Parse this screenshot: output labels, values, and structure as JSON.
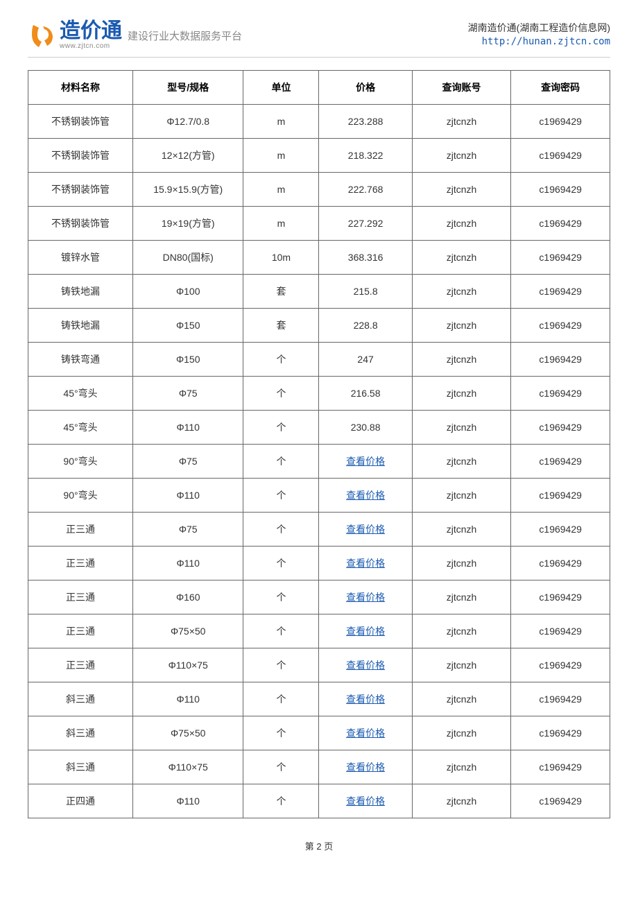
{
  "header": {
    "logo_title": "造价通",
    "logo_sub": "www.zjtcn.com",
    "tagline": "建设行业大数据服务平台",
    "site_name": "湖南造价通(湖南工程造价信息网)",
    "site_url": "http://hunan.zjtcn.com",
    "logo_colors": {
      "orange": "#f08c1a",
      "blue": "#1a5ab0"
    }
  },
  "table": {
    "columns": [
      "材料名称",
      "型号/规格",
      "单位",
      "价格",
      "查询账号",
      "查询密码"
    ],
    "column_widths": [
      "18%",
      "19%",
      "13%",
      "16%",
      "17%",
      "17%"
    ],
    "border_color": "#666666",
    "header_color": "#000000",
    "cell_color": "#333333",
    "link_color": "#1a5ab0",
    "font_size": 14,
    "rows": [
      {
        "name": "不锈钢装饰管",
        "spec": "Φ12.7/0.8",
        "unit": "m",
        "price": "223.288",
        "is_link": false,
        "account": "zjtcnzh",
        "password": "c1969429"
      },
      {
        "name": "不锈钢装饰管",
        "spec": "12×12(方管)",
        "unit": "m",
        "price": "218.322",
        "is_link": false,
        "account": "zjtcnzh",
        "password": "c1969429"
      },
      {
        "name": "不锈钢装饰管",
        "spec": "15.9×15.9(方管)",
        "unit": "m",
        "price": "222.768",
        "is_link": false,
        "account": "zjtcnzh",
        "password": "c1969429"
      },
      {
        "name": "不锈钢装饰管",
        "spec": "19×19(方管)",
        "unit": "m",
        "price": "227.292",
        "is_link": false,
        "account": "zjtcnzh",
        "password": "c1969429"
      },
      {
        "name": "镀锌水管",
        "spec": "DN80(国标)",
        "unit": "10m",
        "price": "368.316",
        "is_link": false,
        "account": "zjtcnzh",
        "password": "c1969429"
      },
      {
        "name": "铸铁地漏",
        "spec": "Φ100",
        "unit": "套",
        "price": "215.8",
        "is_link": false,
        "account": "zjtcnzh",
        "password": "c1969429"
      },
      {
        "name": "铸铁地漏",
        "spec": "Φ150",
        "unit": "套",
        "price": "228.8",
        "is_link": false,
        "account": "zjtcnzh",
        "password": "c1969429"
      },
      {
        "name": "铸铁弯通",
        "spec": "Φ150",
        "unit": "个",
        "price": "247",
        "is_link": false,
        "account": "zjtcnzh",
        "password": "c1969429"
      },
      {
        "name": "45°弯头",
        "spec": "Φ75",
        "unit": "个",
        "price": "216.58",
        "is_link": false,
        "account": "zjtcnzh",
        "password": "c1969429"
      },
      {
        "name": "45°弯头",
        "spec": "Φ110",
        "unit": "个",
        "price": "230.88",
        "is_link": false,
        "account": "zjtcnzh",
        "password": "c1969429"
      },
      {
        "name": "90°弯头",
        "spec": "Φ75",
        "unit": "个",
        "price": "查看价格",
        "is_link": true,
        "account": "zjtcnzh",
        "password": "c1969429"
      },
      {
        "name": "90°弯头",
        "spec": "Φ110",
        "unit": "个",
        "price": "查看价格",
        "is_link": true,
        "account": "zjtcnzh",
        "password": "c1969429"
      },
      {
        "name": "正三通",
        "spec": "Φ75",
        "unit": "个",
        "price": "查看价格",
        "is_link": true,
        "account": "zjtcnzh",
        "password": "c1969429"
      },
      {
        "name": "正三通",
        "spec": "Φ110",
        "unit": "个",
        "price": "查看价格",
        "is_link": true,
        "account": "zjtcnzh",
        "password": "c1969429"
      },
      {
        "name": "正三通",
        "spec": "Φ160",
        "unit": "个",
        "price": "查看价格",
        "is_link": true,
        "account": "zjtcnzh",
        "password": "c1969429"
      },
      {
        "name": "正三通",
        "spec": "Φ75×50",
        "unit": "个",
        "price": "查看价格",
        "is_link": true,
        "account": "zjtcnzh",
        "password": "c1969429"
      },
      {
        "name": "正三通",
        "spec": "Φ110×75",
        "unit": "个",
        "price": "查看价格",
        "is_link": true,
        "account": "zjtcnzh",
        "password": "c1969429"
      },
      {
        "name": "斜三通",
        "spec": "Φ110",
        "unit": "个",
        "price": "查看价格",
        "is_link": true,
        "account": "zjtcnzh",
        "password": "c1969429"
      },
      {
        "name": "斜三通",
        "spec": "Φ75×50",
        "unit": "个",
        "price": "查看价格",
        "is_link": true,
        "account": "zjtcnzh",
        "password": "c1969429"
      },
      {
        "name": "斜三通",
        "spec": "Φ110×75",
        "unit": "个",
        "price": "查看价格",
        "is_link": true,
        "account": "zjtcnzh",
        "password": "c1969429"
      },
      {
        "name": "正四通",
        "spec": "Φ110",
        "unit": "个",
        "price": "查看价格",
        "is_link": true,
        "account": "zjtcnzh",
        "password": "c1969429"
      }
    ]
  },
  "footer": {
    "page_text": "第 2 页"
  }
}
